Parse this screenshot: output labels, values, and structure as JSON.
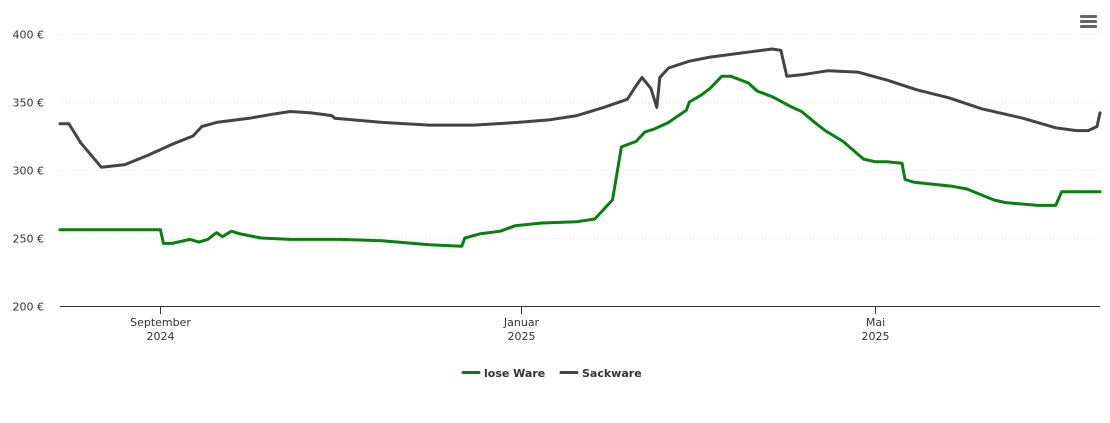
{
  "chart_data": {
    "type": "line",
    "title": "",
    "xlabel": "",
    "ylabel": "",
    "ylim": [
      200,
      400
    ],
    "y_ticks": [
      200,
      250,
      300,
      350,
      400
    ],
    "y_tick_labels": [
      "200 €",
      "250 €",
      "300 €",
      "350 €",
      "400 €"
    ],
    "x_range": [
      "2024-07-29",
      "2025-07-16"
    ],
    "x_ticks": [
      {
        "date": "2024-09-01",
        "line1": "September",
        "line2": "2024"
      },
      {
        "date": "2025-01-01",
        "line1": "Januar",
        "line2": "2025"
      },
      {
        "date": "2025-05-01",
        "line1": "Mai",
        "line2": "2025"
      }
    ],
    "grid": "horizontal",
    "legend_position": "bottom-center",
    "colors": {
      "lose_ware": "#087f0f",
      "sackware": "#434348"
    },
    "series": [
      {
        "name": "lose Ware",
        "color": "#087f0f",
        "points": [
          [
            "2024-07-29",
            256
          ],
          [
            "2024-08-20",
            256
          ],
          [
            "2024-09-01",
            256
          ],
          [
            "2024-09-02",
            246
          ],
          [
            "2024-09-05",
            246
          ],
          [
            "2024-09-11",
            249
          ],
          [
            "2024-09-14",
            247
          ],
          [
            "2024-09-17",
            249
          ],
          [
            "2024-09-20",
            254
          ],
          [
            "2024-09-22",
            251
          ],
          [
            "2024-09-25",
            255
          ],
          [
            "2024-09-28",
            253
          ],
          [
            "2024-10-05",
            250
          ],
          [
            "2024-10-15",
            249
          ],
          [
            "2024-11-01",
            249
          ],
          [
            "2024-11-15",
            248
          ],
          [
            "2024-12-01",
            245
          ],
          [
            "2024-12-12",
            244
          ],
          [
            "2024-12-13",
            250
          ],
          [
            "2024-12-18",
            253
          ],
          [
            "2024-12-25",
            255
          ],
          [
            "2024-12-30",
            259
          ],
          [
            "2025-01-08",
            261
          ],
          [
            "2025-01-20",
            262
          ],
          [
            "2025-01-26",
            264
          ],
          [
            "2025-02-01",
            278
          ],
          [
            "2025-02-04",
            317
          ],
          [
            "2025-02-09",
            321
          ],
          [
            "2025-02-12",
            328
          ],
          [
            "2025-02-15",
            330
          ],
          [
            "2025-02-20",
            335
          ],
          [
            "2025-02-26",
            344
          ],
          [
            "2025-02-27",
            350
          ],
          [
            "2025-03-03",
            355
          ],
          [
            "2025-03-06",
            360
          ],
          [
            "2025-03-10",
            369
          ],
          [
            "2025-03-13",
            369
          ],
          [
            "2025-03-19",
            364
          ],
          [
            "2025-03-22",
            358
          ],
          [
            "2025-03-27",
            354
          ],
          [
            "2025-04-02",
            347
          ],
          [
            "2025-04-06",
            343
          ],
          [
            "2025-04-11",
            334
          ],
          [
            "2025-04-14",
            329
          ],
          [
            "2025-04-20",
            321
          ],
          [
            "2025-04-27",
            308
          ],
          [
            "2025-05-01",
            306
          ],
          [
            "2025-05-05",
            306
          ],
          [
            "2025-05-10",
            305
          ],
          [
            "2025-05-11",
            293
          ],
          [
            "2025-05-14",
            291
          ],
          [
            "2025-05-27",
            288
          ],
          [
            "2025-06-01",
            286
          ],
          [
            "2025-06-10",
            278
          ],
          [
            "2025-06-14",
            276
          ],
          [
            "2025-06-25",
            274
          ],
          [
            "2025-07-01",
            274
          ],
          [
            "2025-07-03",
            284
          ],
          [
            "2025-07-16",
            284
          ]
        ]
      },
      {
        "name": "Sackware",
        "color": "#434348",
        "points": [
          [
            "2024-07-29",
            334
          ],
          [
            "2024-08-01",
            334
          ],
          [
            "2024-08-05",
            320
          ],
          [
            "2024-08-12",
            302
          ],
          [
            "2024-08-20",
            304
          ],
          [
            "2024-08-28",
            311
          ],
          [
            "2024-09-05",
            319
          ],
          [
            "2024-09-12",
            325
          ],
          [
            "2024-09-15",
            332
          ],
          [
            "2024-09-20",
            335
          ],
          [
            "2024-10-01",
            338
          ],
          [
            "2024-10-09",
            341
          ],
          [
            "2024-10-15",
            343
          ],
          [
            "2024-10-22",
            342
          ],
          [
            "2024-10-29",
            340
          ],
          [
            "2024-10-30",
            338
          ],
          [
            "2024-11-15",
            335
          ],
          [
            "2024-12-01",
            333
          ],
          [
            "2024-12-16",
            333
          ],
          [
            "2024-12-31",
            335
          ],
          [
            "2025-01-11",
            337
          ],
          [
            "2025-01-20",
            340
          ],
          [
            "2025-01-29",
            346
          ],
          [
            "2025-02-06",
            352
          ],
          [
            "2025-02-09",
            362
          ],
          [
            "2025-02-11",
            368
          ],
          [
            "2025-02-14",
            360
          ],
          [
            "2025-02-16",
            346
          ],
          [
            "2025-02-17",
            368
          ],
          [
            "2025-02-20",
            375
          ],
          [
            "2025-02-27",
            380
          ],
          [
            "2025-03-06",
            383
          ],
          [
            "2025-03-20",
            387
          ],
          [
            "2025-03-27",
            389
          ],
          [
            "2025-03-30",
            388
          ],
          [
            "2025-04-01",
            369
          ],
          [
            "2025-04-06",
            370
          ],
          [
            "2025-04-15",
            373
          ],
          [
            "2025-04-25",
            372
          ],
          [
            "2025-05-05",
            366
          ],
          [
            "2025-05-15",
            359
          ],
          [
            "2025-05-26",
            353
          ],
          [
            "2025-06-06",
            345
          ],
          [
            "2025-06-20",
            338
          ],
          [
            "2025-07-01",
            331
          ],
          [
            "2025-07-08",
            329
          ],
          [
            "2025-07-12",
            329
          ],
          [
            "2025-07-15",
            332
          ],
          [
            "2025-07-16",
            342
          ]
        ]
      }
    ]
  },
  "legend": {
    "items": [
      {
        "label": "lose Ware",
        "color": "#087f0f"
      },
      {
        "label": "Sackware",
        "color": "#434348"
      }
    ]
  },
  "menu": {
    "icon": "hamburger-menu-icon"
  }
}
